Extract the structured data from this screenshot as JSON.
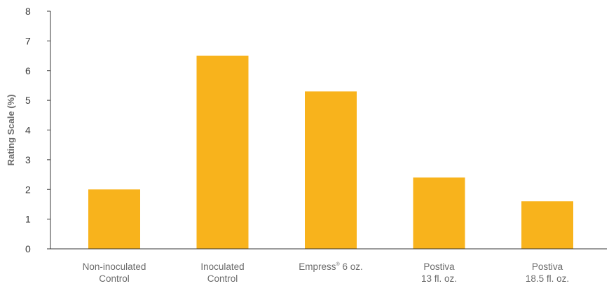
{
  "chart_data": {
    "type": "bar",
    "title": "",
    "xlabel": "",
    "ylabel": "Rating Scale (%)",
    "ylim": [
      0,
      8
    ],
    "yticks": [
      0,
      1,
      2,
      3,
      4,
      5,
      6,
      7,
      8
    ],
    "grid": false,
    "legend": "none",
    "bar_color": "#F8B31C",
    "categories": [
      {
        "lines": [
          "Non-inoculated",
          "Control"
        ]
      },
      {
        "lines": [
          "Inoculated",
          "Control"
        ]
      },
      {
        "lines": [
          "Empress",
          "6 oz."
        ],
        "superscript": "®"
      },
      {
        "lines": [
          "Postiva",
          "13 fl. oz."
        ]
      },
      {
        "lines": [
          "Postiva",
          "18.5 fl. oz."
        ]
      }
    ],
    "values": [
      2.0,
      6.5,
      5.3,
      2.4,
      1.6
    ]
  }
}
